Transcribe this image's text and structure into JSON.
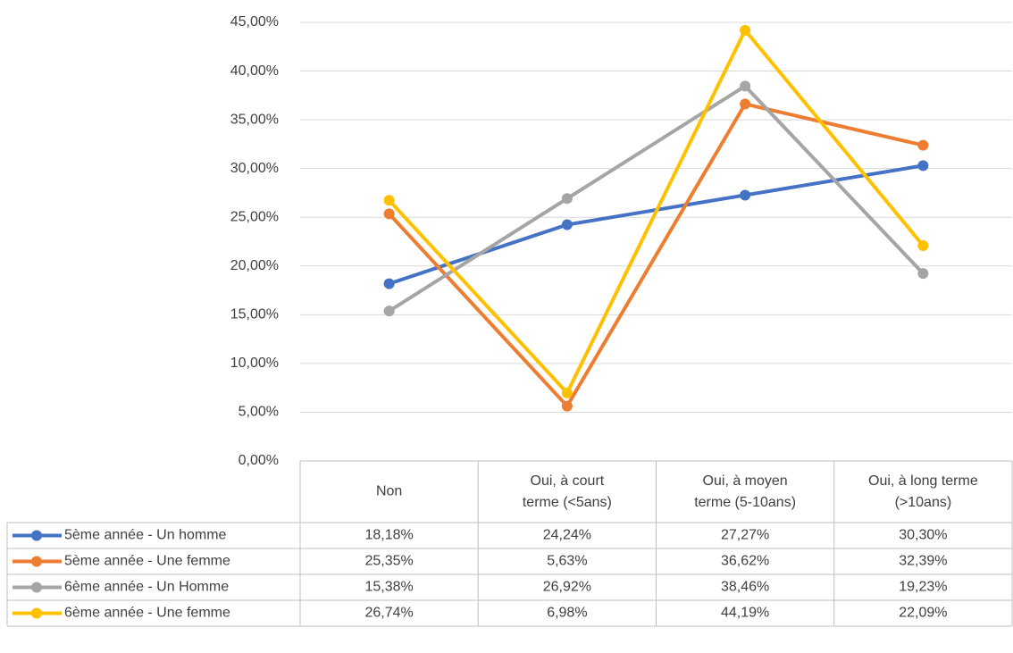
{
  "chart_data": {
    "type": "line",
    "title": "",
    "xlabel": "",
    "ylabel": "",
    "ylim": [
      0,
      45
    ],
    "y_ticks": [
      "0,00%",
      "5,00%",
      "10,00%",
      "15,00%",
      "20,00%",
      "25,00%",
      "30,00%",
      "35,00%",
      "40,00%",
      "45,00%"
    ],
    "grid": "horizontal",
    "legend": "data table below chart",
    "categories": [
      [
        "Non"
      ],
      [
        "Oui, à court",
        "terme (<5ans)"
      ],
      [
        "Oui, à moyen",
        "terme (5-10ans)"
      ],
      [
        "Oui, à long terme",
        "(>10ans)"
      ]
    ],
    "series": [
      {
        "name": "5ème année - Un homme",
        "color": "#4472C4",
        "values": [
          18.18,
          24.24,
          27.27,
          30.3
        ],
        "labels": [
          "18,18%",
          "24,24%",
          "27,27%",
          "30,30%"
        ]
      },
      {
        "name": "5ème année - Une femme",
        "color": "#ED7D31",
        "values": [
          25.35,
          5.63,
          36.62,
          32.39
        ],
        "labels": [
          "25,35%",
          "5,63%",
          "36,62%",
          "32,39%"
        ]
      },
      {
        "name": "6ème année - Un Homme",
        "color": "#A5A5A5",
        "values": [
          15.38,
          26.92,
          38.46,
          19.23
        ],
        "labels": [
          "15,38%",
          "26,92%",
          "38,46%",
          "19,23%"
        ]
      },
      {
        "name": "6ème année - Une femme",
        "color": "#FFC000",
        "values": [
          26.74,
          6.98,
          44.19,
          22.09
        ],
        "labels": [
          "26,74%",
          "6,98%",
          "44,19%",
          "22,09%"
        ]
      }
    ]
  }
}
